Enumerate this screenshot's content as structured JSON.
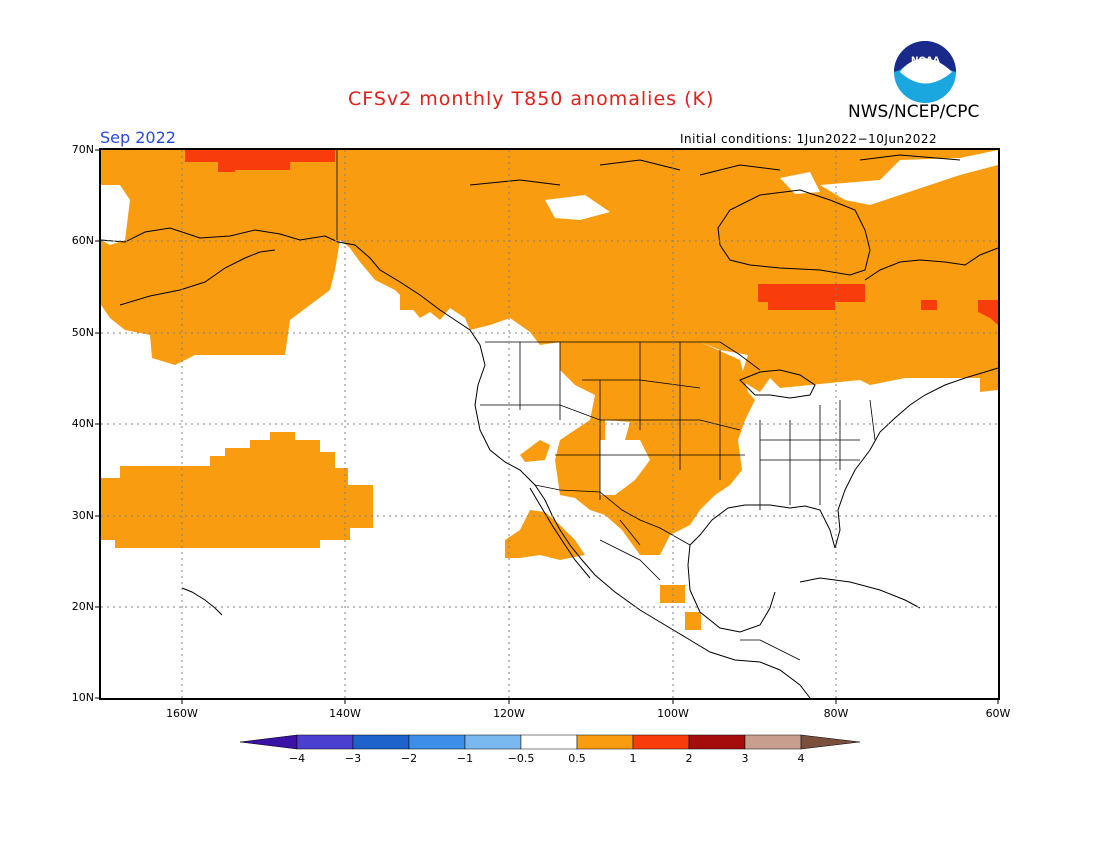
{
  "header": {
    "title": "CFSv2 monthly T850 anomalies (K)",
    "agency": "NWS/NCEP/CPC",
    "logo_text": "NOAA",
    "valid_month": "Sep 2022",
    "initial_conditions": "Initial conditions: 1Jun2022−10Jun2022"
  },
  "map": {
    "lat_labels": [
      "70N",
      "60N",
      "50N",
      "40N",
      "30N",
      "20N",
      "10N"
    ],
    "lon_labels": [
      "160W",
      "140W",
      "120W",
      "100W",
      "80W",
      "60W"
    ],
    "extent": {
      "lon": [
        -170,
        -60
      ],
      "lat": [
        10,
        70
      ]
    },
    "gridlines": true
  },
  "colorbar": {
    "labels": [
      "−4",
      "−3",
      "−2",
      "−1",
      "−0.5",
      "0.5",
      "1",
      "2",
      "3",
      "4"
    ],
    "colors": [
      "#3a13a6",
      "#4a3fcf",
      "#1e62cc",
      "#3d8ee8",
      "#7ab8f0",
      "#ffffff",
      "#f99c0f",
      "#f93c0c",
      "#a50d0d",
      "#c89f8e",
      "#7a4f3c"
    ]
  },
  "colors": {
    "anomaly_0_5_1": "#f99c0f",
    "anomaly_1_2": "#f93c0c",
    "title": "#e0201a",
    "month": "#2a4ad8"
  }
}
